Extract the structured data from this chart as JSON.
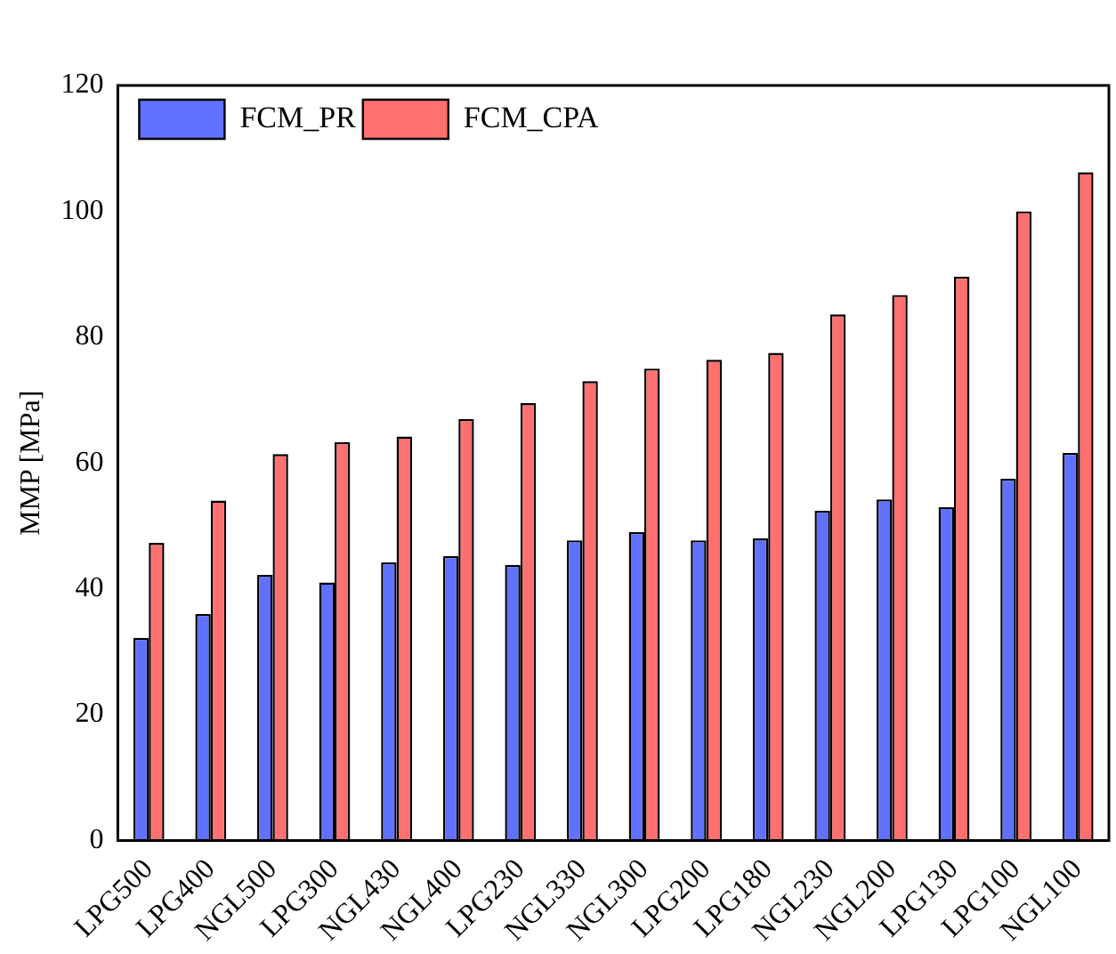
{
  "chart_data": {
    "type": "bar",
    "ylabel": "MMP [MPa]",
    "categories": [
      "LPG500",
      "LPG400",
      "NGL500",
      "LPG300",
      "NGL430",
      "NGL400",
      "LPG230",
      "NGL330",
      "NGL300",
      "LPG200",
      "LPG180",
      "NGL230",
      "NGL200",
      "LPG130",
      "LPG100",
      "NGL100"
    ],
    "series": [
      {
        "name": "FCM_PR",
        "color": "#6070ff",
        "values": [
          32.2,
          36,
          42.2,
          41,
          44.2,
          45.2,
          43.8,
          47.7,
          49,
          47.7,
          48,
          52.4,
          54.2,
          53,
          57.5,
          61.6
        ]
      },
      {
        "name": "FCM_CPA",
        "color": "#ff7070",
        "values": [
          47.3,
          54,
          61.4,
          63.3,
          64.2,
          67,
          69.5,
          73,
          75,
          76.4,
          77.5,
          83.6,
          86.7,
          89.6,
          100,
          106.2
        ]
      }
    ],
    "ylim": [
      0,
      120
    ],
    "yticks": [
      0,
      20,
      40,
      60,
      80,
      100,
      120
    ],
    "grid": false,
    "legend": "top left"
  }
}
